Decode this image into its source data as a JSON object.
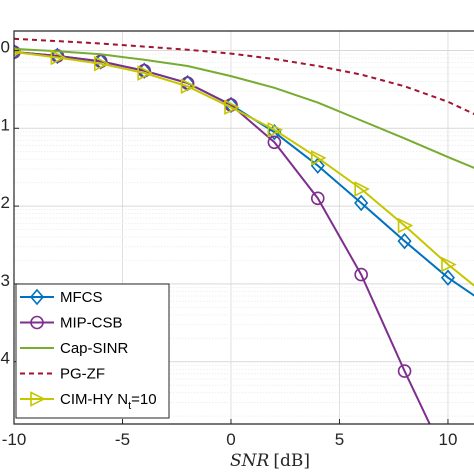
{
  "chart_data": {
    "type": "line",
    "xlabel": "SNR [dB]",
    "xlabel_var": "SNR",
    "xlabel_unit": "[dB]",
    "xlim": [
      -10,
      11.2
    ],
    "ylim_log10": [
      -4.8,
      0.25
    ],
    "y_scale": "log",
    "grid": true,
    "minor_grid": true,
    "legend_position": "bottom-left",
    "x_ticks": [
      -10,
      -5,
      0,
      5,
      10
    ],
    "x_tick_labels": [
      "-10",
      "-5",
      "0",
      "5",
      "10"
    ],
    "y_ticks_log10": [
      0,
      -1,
      -2,
      -3,
      -4
    ],
    "y_tick_labels": [
      "0",
      "1",
      "2",
      "3",
      "4"
    ],
    "series": [
      {
        "name": "MFCS",
        "color": "#0072BD",
        "style": "solid",
        "marker": "diamond",
        "x": [
          -10,
          -8,
          -6,
          -4,
          -2,
          0,
          2,
          4,
          6,
          8,
          10,
          12
        ],
        "log10_y": [
          -0.02,
          -0.07,
          -0.14,
          -0.26,
          -0.42,
          -0.7,
          -1.05,
          -1.48,
          -1.96,
          -2.45,
          -2.92,
          -3.3
        ]
      },
      {
        "name": "MIP-CSB",
        "color": "#7E2F8E",
        "style": "solid",
        "marker": "circle",
        "x": [
          -10,
          -8,
          -6,
          -4,
          -2,
          0,
          2,
          4,
          6,
          8,
          9.5
        ],
        "log10_y": [
          -0.02,
          -0.07,
          -0.14,
          -0.26,
          -0.42,
          -0.7,
          -1.18,
          -1.9,
          -2.88,
          -4.12,
          -5.0
        ]
      },
      {
        "name": "Cap-SINR",
        "color": "#77AC30",
        "style": "solid",
        "marker": "none",
        "x": [
          -10,
          -8,
          -6,
          -4,
          -2,
          0,
          2,
          4,
          6,
          8,
          10,
          12
        ],
        "log10_y": [
          0.02,
          -0.01,
          -0.05,
          -0.12,
          -0.2,
          -0.33,
          -0.48,
          -0.67,
          -0.9,
          -1.13,
          -1.37,
          -1.6
        ]
      },
      {
        "name": "PG-ZF",
        "color": "#A2142F",
        "style": "dashed",
        "marker": "none",
        "x": [
          -10,
          -8,
          -6,
          -4,
          -2,
          0,
          2,
          4,
          6,
          8,
          10,
          12
        ],
        "log10_y": [
          0.15,
          0.12,
          0.09,
          0.05,
          0.01,
          -0.04,
          -0.11,
          -0.2,
          -0.31,
          -0.46,
          -0.66,
          -0.92
        ]
      },
      {
        "name": "CIM-HY N_t=10",
        "color": "#C6C600",
        "style": "solid",
        "marker": "triangle-right",
        "x": [
          -10,
          -8,
          -6,
          -4,
          -2,
          0,
          2,
          4,
          6,
          8,
          10,
          12
        ],
        "log10_y": [
          -0.02,
          -0.09,
          -0.17,
          -0.29,
          -0.46,
          -0.73,
          -1.02,
          -1.38,
          -1.78,
          -2.25,
          -2.75,
          -3.2
        ]
      }
    ],
    "legend_entries": [
      "MFCS",
      "MIP-CSB",
      "Cap-SINR",
      "PG-ZF",
      "CIM-HY N"
    ],
    "legend_subscript": "t",
    "legend_suffix": "=10"
  }
}
